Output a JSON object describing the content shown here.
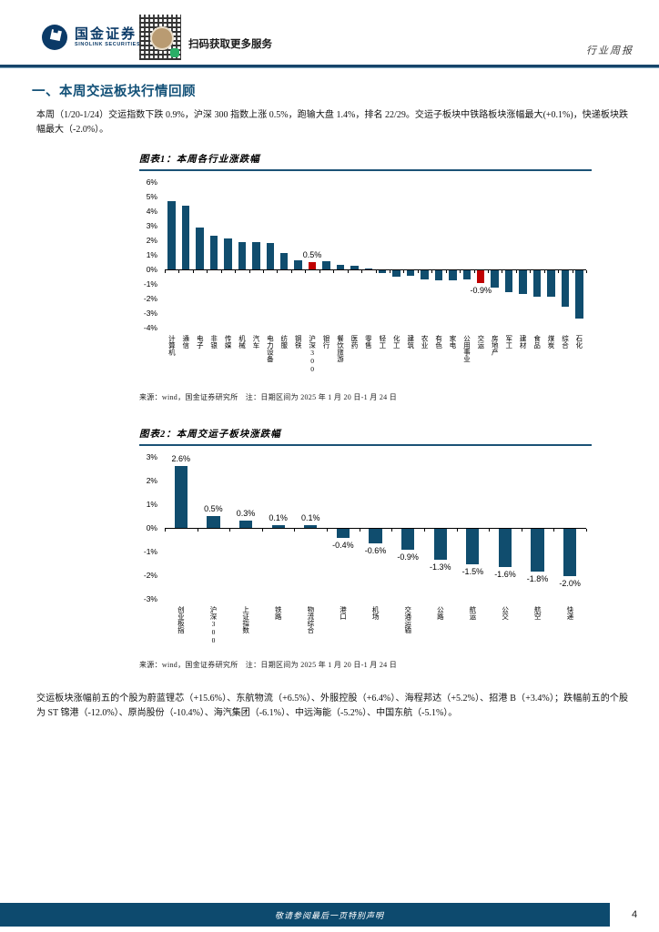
{
  "header": {
    "brand_cn": "国金证券",
    "brand_en": "SINOLINK SECURITIES",
    "qr_caption": "扫码获取更多服务",
    "doc_type": "行业周报"
  },
  "section": {
    "title": "一、本周交运板块行情回顾"
  },
  "paragraphs": {
    "p1": "本周（1/20-1/24）交运指数下跌 0.9%，沪深 300 指数上涨 0.5%，跑输大盘 1.4%，排名 22/29。交运子板块中铁路板块涨幅最大(+0.1%)，快递板块跌幅最大（-2.0%）。",
    "p2": "交运板块涨幅前五的个股为蔚蓝锂芯（+15.6%）、东航物流（+6.5%）、外服控股（+6.4%）、海程邦达（+5.2%）、招港 B（+3.4%）；跌幅前五的个股为 ST 锦港（-12.0%）、原尚股份（-10.4%）、海汽集团（-6.1%）、中远海能（-5.2%）、中国东航（-5.1%）。"
  },
  "figures": [
    {
      "title": "图表1：本周各行业涨跌幅",
      "source": "来源：wind，国金证券研究所　注：日期区间为 2025 年 1 月 20 日-1 月 24 日"
    },
    {
      "title": "图表2：本周交运子板块涨跌幅",
      "source": "来源：wind，国金证券研究所　注：日期区间为 2025 年 1 月 20 日-1 月 24 日"
    }
  ],
  "chart_data": [
    {
      "type": "bar",
      "title": "本周各行业涨跌幅",
      "categories": [
        "计算机",
        "通信",
        "电子",
        "非银",
        "传媒",
        "机械",
        "汽车",
        "电力设备",
        "纺服",
        "钢铁",
        "沪深300",
        "银行",
        "餐饮旅游",
        "医药",
        "零售",
        "轻工",
        "化工",
        "建筑",
        "农业",
        "有色",
        "家电",
        "公用事业",
        "交运",
        "房地产",
        "军工",
        "建材",
        "食品",
        "煤炭",
        "综合",
        "石化"
      ],
      "values": [
        4.7,
        4.4,
        2.9,
        2.3,
        2.1,
        1.9,
        1.9,
        1.8,
        1.1,
        0.6,
        0.5,
        0.55,
        0.3,
        0.25,
        0.05,
        -0.2,
        -0.45,
        -0.35,
        -0.65,
        -0.7,
        -0.7,
        -0.65,
        -0.9,
        -1.2,
        -1.5,
        -1.6,
        -1.8,
        -1.8,
        -2.5,
        -3.3
      ],
      "ylim": [
        -4,
        6
      ],
      "ytick_step": 1,
      "highlight_indices": [
        10,
        22
      ],
      "labeled_indices": [
        10,
        22
      ],
      "grid": false,
      "legend": "none",
      "xlabel": "",
      "ylabel": ""
    },
    {
      "type": "bar",
      "title": "本周交运子板块涨跌幅",
      "categories": [
        "创业板指",
        "沪深300",
        "上证指数",
        "铁路",
        "物流综合",
        "港口",
        "机场",
        "交通运输",
        "公路",
        "航运",
        "公交",
        "航空",
        "快递"
      ],
      "values": [
        2.6,
        0.5,
        0.3,
        0.1,
        0.1,
        -0.4,
        -0.6,
        -0.9,
        -1.3,
        -1.5,
        -1.6,
        -1.8,
        -2.0
      ],
      "ylim": [
        -3,
        3
      ],
      "ytick_step": 1,
      "highlight_indices": [],
      "labeled_indices": "all",
      "grid": false,
      "legend": "none",
      "xlabel": "",
      "ylabel": ""
    }
  ],
  "footer": {
    "disclaimer": "敬请参阅最后一页特别声明",
    "page_number": "4"
  },
  "colors": {
    "bar": "#104d6e",
    "highlight": "#c00000",
    "heading": "#135178",
    "rule": "#16456a",
    "footer_bg": "#0d4a6e",
    "brand_navy": "#0b3a67"
  }
}
